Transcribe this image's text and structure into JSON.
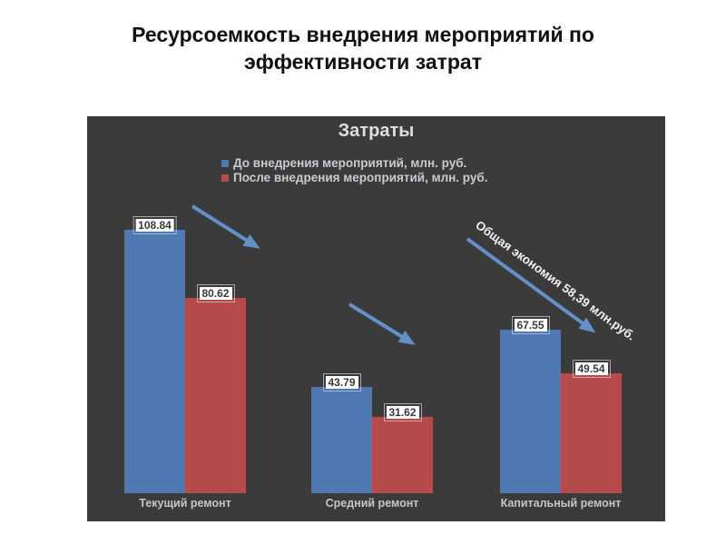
{
  "slide": {
    "title": "Ресурсоемкость внедрения мероприятий по эффективности затрат"
  },
  "chart": {
    "title": "Затраты",
    "annotation": "Общая экономия 58,39 млн.руб."
  },
  "chart_data": {
    "type": "bar",
    "title": "Затраты",
    "categories": [
      "Текущий ремонт",
      "Средний ремонт",
      "Капитальный ремонт"
    ],
    "series": [
      {
        "name": "До внедрения мероприятий, млн. руб.",
        "values": [
          108.84,
          43.79,
          67.55
        ],
        "color": "#4e79b2"
      },
      {
        "name": "После внедрения мероприятий, млн. руб.",
        "values": [
          80.62,
          31.62,
          49.54
        ],
        "color": "#b54b4a"
      }
    ],
    "annotations": [
      "Общая экономия 58,39 млн.руб."
    ],
    "ylim": [
      0,
      120
    ],
    "grid": false,
    "legend_position": "top-left",
    "background": "#3b3b3b",
    "trend_arrow_color": "#6390c7",
    "value_labels": [
      "108.84",
      "80.62",
      "43.79",
      "31.62",
      "67.55",
      "49.54"
    ]
  }
}
